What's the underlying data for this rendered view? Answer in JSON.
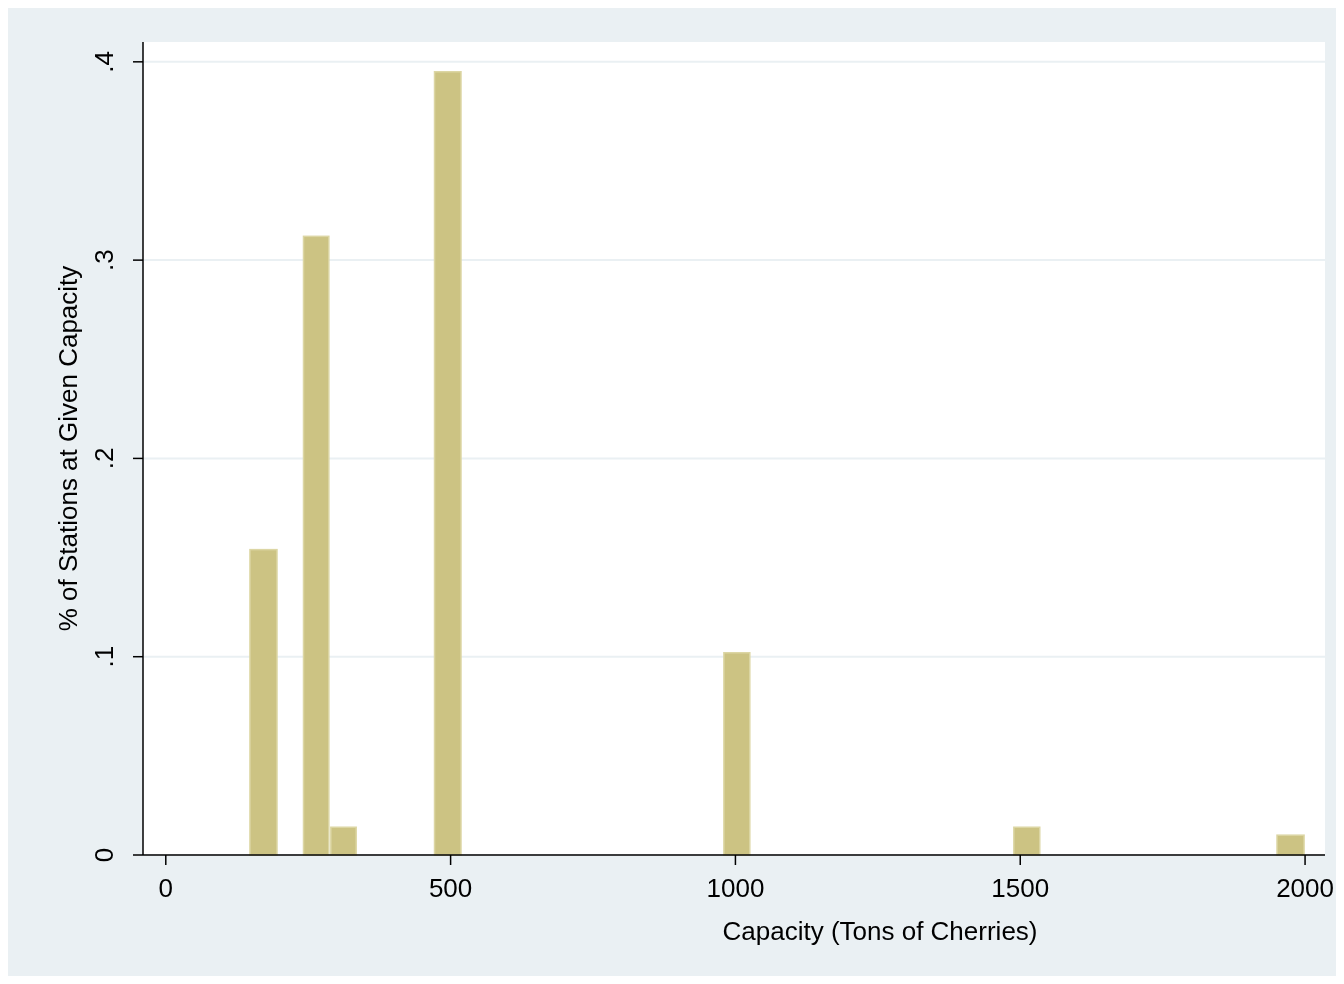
{
  "chart_data": {
    "type": "histogram",
    "xlabel": "Capacity (Tons of Cherries)",
    "ylabel": "% of Stations at Given Capacity",
    "bins": [
      146,
      197,
      240,
      288,
      336,
      470,
      520,
      978,
      1027,
      1487,
      1536,
      1949,
      2000
    ],
    "values": [
      0.154,
      0,
      0.312,
      0.014,
      0,
      0.395,
      0,
      0.102,
      0,
      0.014,
      0,
      0.01
    ],
    "color": "#ccc383",
    "xlim": [
      -40,
      2035
    ],
    "xticks": [
      0,
      500,
      1000,
      1500,
      2000
    ],
    "ylim": [
      0,
      0.41
    ],
    "yticks": [
      0,
      {
        "value": 0.1,
        "label": ".1"
      },
      {
        "value": 0.2,
        "label": ".2"
      },
      {
        "value": 0.3,
        "label": ".3"
      },
      {
        "value": 0.4,
        "label": ".4"
      }
    ],
    "grid": "y"
  }
}
